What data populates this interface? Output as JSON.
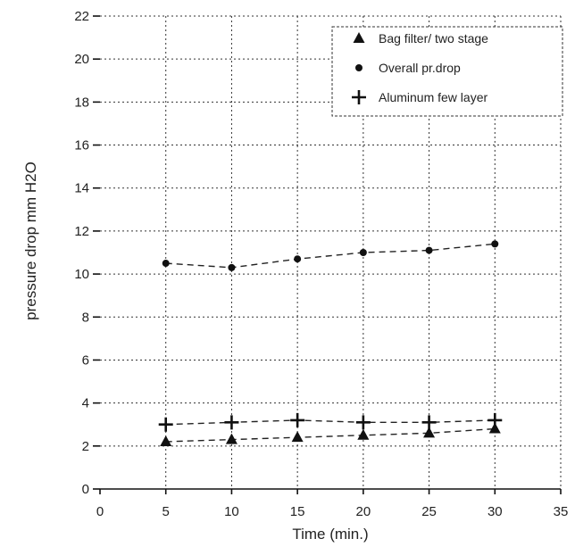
{
  "chart_data": {
    "type": "line",
    "title": "",
    "xlabel": "Time (min.)",
    "ylabel": "pressure drop mm H2O",
    "xlim": [
      0,
      35
    ],
    "ylim": [
      0,
      22
    ],
    "xticks": [
      0,
      5,
      10,
      15,
      20,
      25,
      30,
      35
    ],
    "yticks": [
      0,
      2,
      4,
      6,
      8,
      10,
      12,
      14,
      16,
      18,
      20,
      22
    ],
    "grid": true,
    "legend_position": "top-right",
    "x": [
      5,
      10,
      15,
      20,
      25,
      30
    ],
    "series": [
      {
        "name": "Bag filter/ two stage",
        "marker": "triangle",
        "values": [
          2.2,
          2.3,
          2.4,
          2.5,
          2.6,
          2.8
        ]
      },
      {
        "name": "Overall pr.drop",
        "marker": "circle",
        "values": [
          10.5,
          10.3,
          10.7,
          11.0,
          11.1,
          11.4
        ]
      },
      {
        "name": "Aluminum few layer",
        "marker": "plus",
        "values": [
          3.0,
          3.1,
          3.2,
          3.1,
          3.1,
          3.2
        ]
      }
    ]
  }
}
